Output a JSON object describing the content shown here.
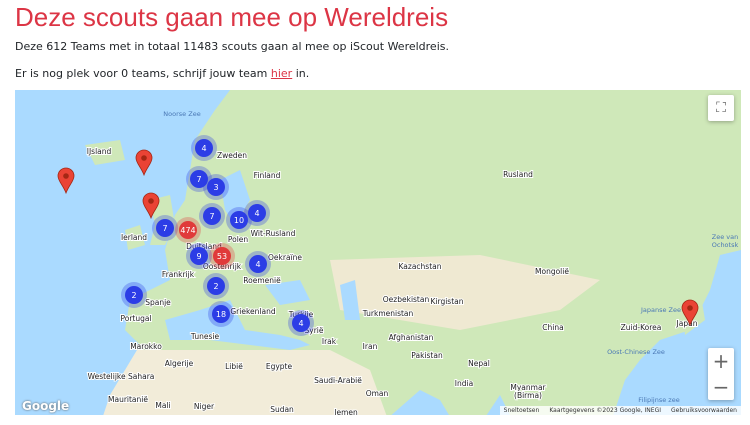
{
  "header": {
    "title": "Deze scouts gaan mee op Wereldreis"
  },
  "intro": "Deze 612 Teams met in totaal 11483 scouts gaan al mee op iScout Wereldreis.",
  "note": {
    "before": "Er is nog plek voor 0 teams, schrijf jouw team ",
    "link": "hier",
    "after": " in."
  },
  "map": {
    "labels": [
      "IJsland",
      "Zweden",
      "Finland",
      "Rusland",
      "Ierland",
      "Wit-Rusland",
      "Polen",
      "Duitsland",
      "Oekraïne",
      "Kazachstan",
      "Mongolië",
      "Frankrijk",
      "Oostenrijk",
      "Roemenië",
      "Oezbekistan",
      "Kirgistan",
      "Spanje",
      "Turkmenistan",
      "Portugal",
      "Griekenland",
      "Turkije",
      "Syrië",
      "China",
      "Zuid-Korea",
      "Japan",
      "Tunesie",
      "Irak",
      "Iran",
      "Afghanistan",
      "Pakistan",
      "Nepal",
      "Marokko",
      "Algerije",
      "Libië",
      "Egypte",
      "Westelijke Sahara",
      "Saudi-Arabië",
      "India",
      "Oman",
      "Myanmar",
      "(Birma)",
      "Mauritanië",
      "Mali",
      "Niger",
      "Sudan",
      "Jemen"
    ],
    "water_labels": [
      "Noorse Zee",
      "Oost-Chinese Zee",
      "Japanse Zee",
      "Zee van",
      "Ochotsk",
      "Filipijnse zee"
    ],
    "clusters": [
      {
        "count": 4,
        "color": "#2c3de6"
      },
      {
        "count": 7,
        "color": "#2c3de6"
      },
      {
        "count": 3,
        "color": "#2c3de6"
      },
      {
        "count": 7,
        "color": "#2c3de6"
      },
      {
        "count": 10,
        "color": "#2c3de6"
      },
      {
        "count": 4,
        "color": "#2c3de6"
      },
      {
        "count": 7,
        "color": "#2c3de6"
      },
      {
        "count": 474,
        "color": "#e03a3a"
      },
      {
        "count": 9,
        "color": "#2c3de6"
      },
      {
        "count": 53,
        "color": "#e03a3a"
      },
      {
        "count": 4,
        "color": "#2c3de6"
      },
      {
        "count": 2,
        "color": "#2c3de6"
      },
      {
        "count": 2,
        "color": "#2c3de6"
      },
      {
        "count": 18,
        "color": "#2c3de6"
      },
      {
        "count": 4,
        "color": "#2c3de6"
      }
    ],
    "zoom_in": "+",
    "zoom_out": "−",
    "logo": "Google",
    "attribution": [
      "Sneltoetsen",
      "Kaartgegevens ©2023 Google, INEGI",
      "Gebruiksvoorwaarden"
    ]
  }
}
